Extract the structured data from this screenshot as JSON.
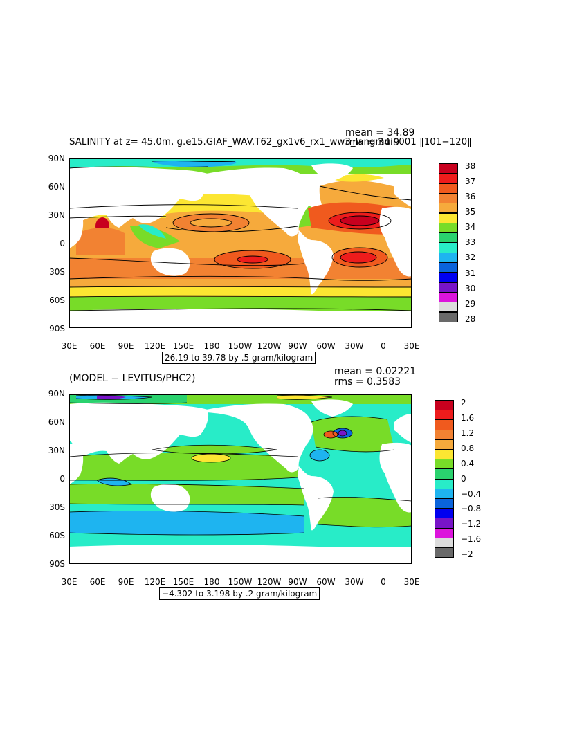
{
  "top": {
    "title": "SALINITY at z=  45.0m, g.e15.GIAF_WAV.T62_gx1v6_rx1_ww3_langmuir.001 ‖101−120‖",
    "mean": "mean = 34.89",
    "rms": "rms = 34.9",
    "range": "26.19 to 39.78 by .5 gram/kilogram",
    "y_ticks": [
      "90N",
      "60N",
      "30N",
      "0",
      "30S",
      "60S",
      "90S"
    ],
    "x_ticks": [
      "30E",
      "60E",
      "90E",
      "120E",
      "150E",
      "180",
      "150W",
      "120W",
      "90W",
      "60W",
      "30W",
      "0",
      "30E"
    ],
    "colorbar": {
      "labels": [
        "38",
        "37",
        "36",
        "35",
        "34",
        "33",
        "32",
        "31",
        "30",
        "29",
        "28"
      ],
      "colors": [
        "#c8001e",
        "#ee1c1c",
        "#f05a1e",
        "#f28232",
        "#f6aa3c",
        "#fce632",
        "#78dc28",
        "#2ad26e",
        "#28ecc8",
        "#1eb4f0",
        "#0a64dc",
        "#0000f0",
        "#7814c8",
        "#dc14dc",
        "#dcdcdc",
        "#696969"
      ]
    }
  },
  "bottom": {
    "title": "(MODEL − LEVITUS/PHC2)",
    "mean": "mean = 0.02221",
    "rms": "rms = 0.3583",
    "range": "−4.302 to 3.198 by .2 gram/kilogram",
    "y_ticks": [
      "90N",
      "60N",
      "30N",
      "0",
      "30S",
      "60S",
      "90S"
    ],
    "x_ticks": [
      "30E",
      "60E",
      "90E",
      "120E",
      "150E",
      "180",
      "150W",
      "120W",
      "90W",
      "60W",
      "30W",
      "0",
      "30E"
    ],
    "colorbar": {
      "labels": [
        "2",
        "1.6",
        "1.2",
        "0.8",
        "0.4",
        "0",
        "−0.4",
        "−0.8",
        "−1.2",
        "−1.6",
        "−2"
      ],
      "colors": [
        "#c8001e",
        "#ee1c1c",
        "#f05a1e",
        "#f28232",
        "#f6aa3c",
        "#fce632",
        "#78dc28",
        "#2ad26e",
        "#28ecc8",
        "#1eb4f0",
        "#0a64dc",
        "#0000f0",
        "#7814c8",
        "#dc14dc",
        "#dcdcdc",
        "#696969"
      ]
    }
  }
}
